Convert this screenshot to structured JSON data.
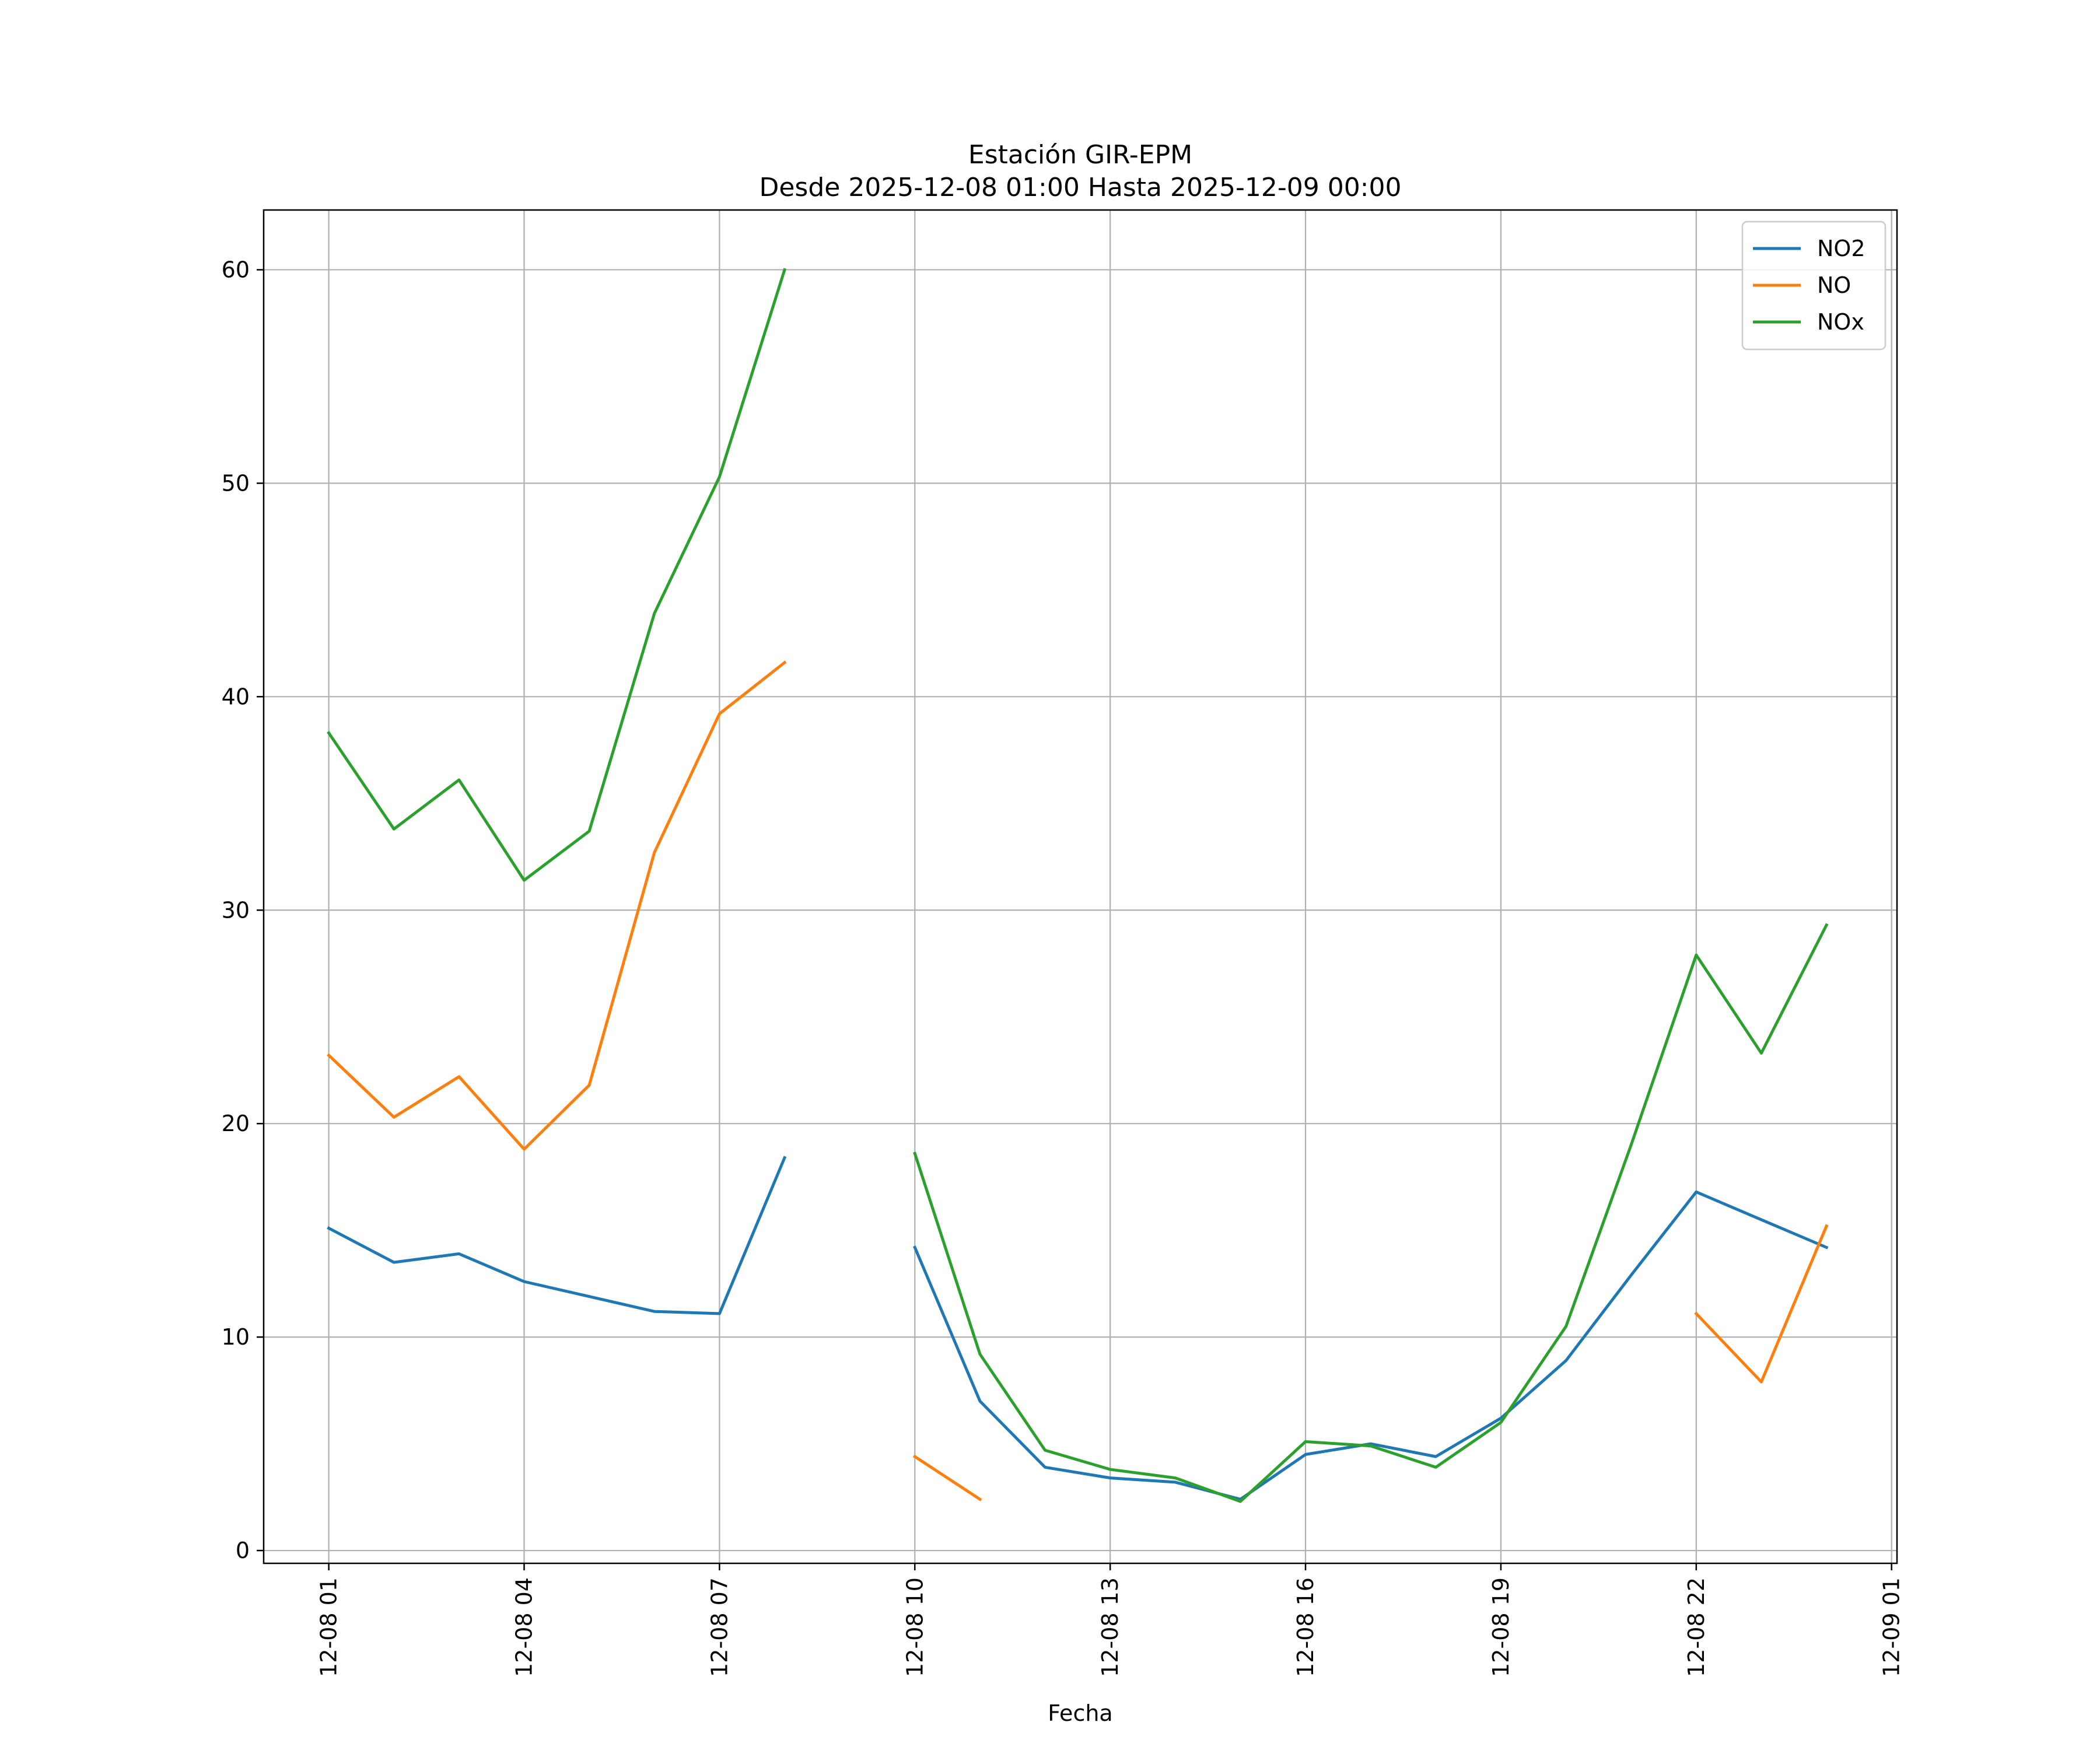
{
  "chart_data": {
    "type": "line",
    "title": "Estación GIR-EPM",
    "subtitle": "Desde 2025-12-08 01:00 Hasta 2025-12-09 00:00",
    "xlabel": "Fecha",
    "ylabel": "",
    "x_range": [
      "2025-12-08 00:00",
      "2025-12-09 01:05"
    ],
    "ylim": [
      -0.6,
      62.8
    ],
    "x_ticks": [
      {
        "t": "2025-12-08 01:00",
        "label": "12-08 01"
      },
      {
        "t": "2025-12-08 04:00",
        "label": "12-08 04"
      },
      {
        "t": "2025-12-08 07:00",
        "label": "12-08 07"
      },
      {
        "t": "2025-12-08 10:00",
        "label": "12-08 10"
      },
      {
        "t": "2025-12-08 13:00",
        "label": "12-08 13"
      },
      {
        "t": "2025-12-08 16:00",
        "label": "12-08 16"
      },
      {
        "t": "2025-12-08 19:00",
        "label": "12-08 19"
      },
      {
        "t": "2025-12-08 22:00",
        "label": "12-08 22"
      },
      {
        "t": "2025-12-09 01:00",
        "label": "12-09 01"
      }
    ],
    "y_ticks": [
      0,
      10,
      20,
      30,
      40,
      50,
      60
    ],
    "grid": true,
    "legend_position": "top-right",
    "x": [
      "2025-12-08 01:00",
      "2025-12-08 02:00",
      "2025-12-08 03:00",
      "2025-12-08 04:00",
      "2025-12-08 05:00",
      "2025-12-08 06:00",
      "2025-12-08 07:00",
      "2025-12-08 08:00",
      "2025-12-08 09:00",
      "2025-12-08 10:00",
      "2025-12-08 11:00",
      "2025-12-08 12:00",
      "2025-12-08 13:00",
      "2025-12-08 14:00",
      "2025-12-08 15:00",
      "2025-12-08 16:00",
      "2025-12-08 17:00",
      "2025-12-08 18:00",
      "2025-12-08 19:00",
      "2025-12-08 20:00",
      "2025-12-08 21:00",
      "2025-12-08 22:00",
      "2025-12-08 23:00",
      "2025-12-09 00:00"
    ],
    "series": [
      {
        "name": "NO2",
        "color": "#1f77b4",
        "values": [
          15.1,
          13.5,
          13.9,
          12.6,
          11.9,
          11.2,
          11.1,
          18.4,
          null,
          14.2,
          7.0,
          3.9,
          3.4,
          3.2,
          2.4,
          4.5,
          5.0,
          4.4,
          6.2,
          8.9,
          12.9,
          16.8,
          15.5,
          14.2
        ]
      },
      {
        "name": "NO",
        "color": "#ff7f0e",
        "values": [
          23.2,
          20.3,
          22.2,
          18.8,
          21.8,
          32.7,
          39.2,
          41.6,
          null,
          4.4,
          2.4,
          null,
          null,
          null,
          null,
          null,
          null,
          null,
          null,
          null,
          null,
          11.1,
          7.9,
          15.2
        ]
      },
      {
        "name": "NOx",
        "color": "#2ca02c",
        "values": [
          38.3,
          33.8,
          36.1,
          31.4,
          33.7,
          43.9,
          50.3,
          60.0,
          null,
          18.6,
          9.2,
          4.7,
          3.8,
          3.4,
          2.3,
          5.1,
          4.9,
          3.9,
          6.0,
          10.5,
          19.0,
          27.9,
          23.3,
          29.3
        ]
      }
    ]
  }
}
